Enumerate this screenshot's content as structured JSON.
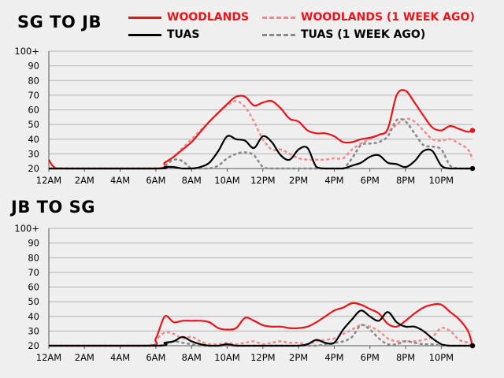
{
  "legend": {
    "woodlands": "WOODLANDS",
    "woodlands_prev": "WOODLANDS (1 WEEK AGO)",
    "tuas": "TUAS",
    "tuas_prev": "TUAS (1 WEEK AGO)"
  },
  "colors": {
    "woodlands": "#e8141b",
    "woodlands_prev": "#f08c8c",
    "tuas": "#000000",
    "tuas_prev": "#888888"
  },
  "chart_data": [
    {
      "type": "line",
      "title": "SG TO JB",
      "xlabel": "",
      "ylabel": "",
      "x_ticks": [
        "12AM",
        "2AM",
        "4AM",
        "6AM",
        "8AM",
        "10AM",
        "12PM",
        "2PM",
        "4PM",
        "6PM",
        "8PM",
        "10PM"
      ],
      "y_ticks": [
        "20",
        "30",
        "40",
        "50",
        "60",
        "70",
        "80",
        "90",
        "100+"
      ],
      "ylim": [
        20,
        100
      ],
      "xlim": [
        0,
        23.75
      ],
      "grid": true,
      "series": [
        {
          "name": "WOODLANDS (1 WEEK AGO)",
          "style": "dashed",
          "x": [
            0,
            6,
            6.5,
            7,
            7.5,
            8,
            8.5,
            9,
            9.5,
            10,
            10.5,
            11,
            11.5,
            12,
            12.5,
            13,
            13.5,
            14,
            14.5,
            15,
            15.5,
            16,
            16.5,
            17,
            17.5,
            18,
            18.5,
            19,
            19.5,
            20,
            20.5,
            21,
            21.5,
            22,
            22.5,
            23,
            23.5,
            23.75
          ],
          "y": [
            20,
            20,
            24,
            28,
            34,
            40,
            46,
            52,
            58,
            63,
            66,
            62,
            52,
            40,
            33,
            33,
            30,
            27,
            26,
            26,
            26,
            27,
            27,
            33,
            37,
            40,
            43,
            45,
            50,
            54,
            52,
            46,
            40,
            39,
            40,
            37,
            33,
            26
          ]
        },
        {
          "name": "WOODLANDS",
          "style": "solid",
          "x": [
            0,
            0.3,
            1,
            6,
            6.5,
            7,
            7.5,
            8,
            8.5,
            9,
            9.5,
            10,
            10.5,
            11,
            11.5,
            12,
            12.5,
            13,
            13.5,
            14,
            14.5,
            15,
            15.5,
            16,
            16.5,
            17,
            17.5,
            18,
            18.5,
            19,
            19.5,
            20,
            20.5,
            21,
            21.5,
            22,
            22.5,
            23,
            23.5,
            23.75
          ],
          "y": [
            26,
            21,
            20,
            20,
            24,
            28,
            33,
            38,
            45,
            52,
            58,
            64,
            69,
            69,
            63,
            65,
            66,
            61,
            54,
            52,
            46,
            44,
            44,
            42,
            38,
            38,
            40,
            41,
            43,
            47,
            70,
            73,
            65,
            56,
            48,
            46,
            49,
            47,
            45,
            46
          ]
        },
        {
          "name": "TUAS (1 WEEK AGO)",
          "style": "dashed",
          "x": [
            0,
            6,
            6.5,
            7,
            7.5,
            8,
            8.5,
            9,
            9.5,
            10,
            10.5,
            11,
            11.5,
            12,
            12.5,
            13,
            13.5,
            14,
            14.5,
            15,
            15.5,
            16,
            16.5,
            17,
            17.5,
            18,
            18.5,
            19,
            19.5,
            20,
            20.5,
            21,
            21.5,
            22,
            22.5,
            23,
            23.5,
            23.75
          ],
          "y": [
            20,
            20,
            22,
            26,
            25,
            20,
            20,
            20,
            22,
            27,
            30,
            31,
            29,
            21,
            20,
            20,
            20,
            20,
            20,
            20,
            20,
            20,
            20,
            27,
            36,
            37,
            38,
            42,
            53,
            52,
            44,
            36,
            35,
            33,
            22,
            20,
            20,
            20
          ]
        },
        {
          "name": "TUAS",
          "style": "solid",
          "x": [
            0,
            6,
            6.5,
            7,
            7.5,
            8,
            8.5,
            9,
            9.5,
            10,
            10.5,
            11,
            11.5,
            12,
            12.5,
            13,
            13.5,
            14,
            14.5,
            15,
            15.5,
            16,
            16.5,
            17,
            17.5,
            18,
            18.5,
            19,
            19.5,
            20,
            20.5,
            21,
            21.5,
            22,
            22.5,
            23,
            23.5,
            23.75
          ],
          "y": [
            20,
            20,
            21,
            21,
            20,
            20,
            21,
            24,
            32,
            42,
            40,
            39,
            34,
            42,
            38,
            29,
            26,
            33,
            34,
            21,
            20,
            20,
            20,
            22,
            24,
            28,
            29,
            24,
            23,
            21,
            25,
            32,
            32,
            22,
            20,
            20,
            20,
            20
          ]
        }
      ]
    },
    {
      "type": "line",
      "title": "JB TO SG",
      "xlabel": "",
      "ylabel": "",
      "x_ticks": [
        "12AM",
        "2AM",
        "4AM",
        "6AM",
        "8AM",
        "10AM",
        "12PM",
        "2PM",
        "4PM",
        "6PM",
        "8PM",
        "10PM"
      ],
      "y_ticks": [
        "20",
        "30",
        "40",
        "50",
        "60",
        "70",
        "80",
        "90",
        "100+"
      ],
      "ylim": [
        20,
        100
      ],
      "xlim": [
        0,
        23.75
      ],
      "grid": true,
      "series": [
        {
          "name": "WOODLANDS (1 WEEK AGO)",
          "style": "dashed",
          "x": [
            0,
            5.5,
            6,
            6.5,
            7,
            7.5,
            8,
            8.5,
            9,
            9.5,
            10,
            10.5,
            11,
            11.5,
            12,
            12.5,
            13,
            13.5,
            14,
            14.5,
            15,
            15.5,
            16,
            16.5,
            17,
            17.5,
            18,
            18.5,
            19,
            19.5,
            20,
            20.5,
            21,
            21.5,
            22,
            22.5,
            23,
            23.5,
            23.75
          ],
          "y": [
            20,
            20,
            24,
            29,
            28,
            25,
            26,
            23,
            21,
            21,
            22,
            21,
            22,
            23,
            21,
            22,
            23,
            22,
            22,
            21,
            23,
            24,
            25,
            28,
            31,
            34,
            33,
            30,
            25,
            23,
            23,
            23,
            24,
            26,
            32,
            30,
            24,
            22,
            20
          ]
        },
        {
          "name": "WOODLANDS",
          "style": "solid",
          "x": [
            0,
            5.5,
            6,
            6.5,
            7,
            7.5,
            8,
            8.5,
            9,
            9.5,
            10,
            10.5,
            11,
            11.5,
            12,
            12.5,
            13,
            13.5,
            14,
            14.5,
            15,
            15.5,
            16,
            16.5,
            17,
            17.5,
            18,
            18.5,
            19,
            19.5,
            20,
            20.5,
            21,
            21.5,
            22,
            22.5,
            23,
            23.5,
            23.75
          ],
          "y": [
            20,
            20,
            25,
            40,
            36,
            37,
            37,
            37,
            36,
            32,
            31,
            32,
            39,
            37,
            34,
            33,
            33,
            32,
            32,
            33,
            36,
            40,
            44,
            46,
            49,
            48,
            45,
            42,
            35,
            33,
            37,
            42,
            46,
            48,
            48,
            43,
            38,
            30,
            20
          ]
        },
        {
          "name": "TUAS (1 WEEK AGO)",
          "style": "dashed",
          "x": [
            0,
            6,
            6.5,
            7,
            7.5,
            8,
            8.5,
            9,
            9.5,
            10,
            10.5,
            11,
            11.5,
            12,
            12.5,
            13,
            13.5,
            14,
            14.5,
            15,
            15.5,
            16,
            16.5,
            17,
            17.5,
            18,
            18.5,
            19,
            19.5,
            20,
            20.5,
            21,
            21.5,
            22,
            22.5,
            23,
            23.5,
            23.75
          ],
          "y": [
            20,
            20,
            21,
            23,
            22,
            21,
            20,
            20,
            20,
            20,
            20,
            20,
            20,
            20,
            20,
            20,
            20,
            20,
            20,
            20,
            21,
            22,
            23,
            26,
            34,
            31,
            25,
            21,
            21,
            23,
            22,
            21,
            21,
            20,
            20,
            20,
            20,
            20
          ]
        },
        {
          "name": "TUAS",
          "style": "solid",
          "x": [
            0,
            6,
            6.5,
            7,
            7.5,
            8,
            8.5,
            9,
            9.5,
            10,
            10.5,
            11,
            11.5,
            12,
            12.5,
            13,
            13.5,
            14,
            14.5,
            15,
            15.5,
            16,
            16.5,
            17,
            17.5,
            18,
            18.5,
            19,
            19.5,
            20,
            20.5,
            21,
            21.5,
            22,
            22.5,
            23,
            23.5,
            23.75
          ],
          "y": [
            20,
            20,
            22,
            23,
            26,
            23,
            21,
            20,
            20,
            21,
            20,
            20,
            20,
            20,
            20,
            20,
            20,
            20,
            21,
            24,
            22,
            22,
            31,
            38,
            44,
            40,
            37,
            43,
            36,
            33,
            33,
            30,
            25,
            21,
            20,
            20,
            20,
            20
          ]
        }
      ]
    }
  ]
}
